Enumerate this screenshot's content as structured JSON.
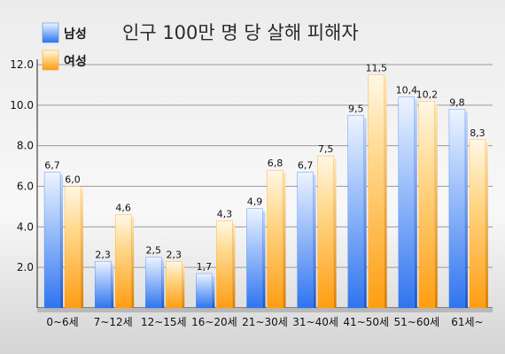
{
  "chart_data": {
    "type": "bar",
    "title": "인구 100만 명 당 살해 피해자",
    "categories": [
      "0~6세",
      "7~12세",
      "12~15세",
      "16~20세",
      "21~30세",
      "31~40세",
      "41~50세",
      "51~60세",
      "61세~"
    ],
    "series": [
      {
        "name": "남성",
        "values": [
          6.7,
          2.3,
          2.5,
          1.7,
          4.9,
          6.7,
          9.5,
          10.4,
          9.8
        ],
        "labels": [
          "6,7",
          "2,3",
          "2,5",
          "1,7",
          "4,9",
          "6,7",
          "9,5",
          "10,4",
          "9,8"
        ]
      },
      {
        "name": "여성",
        "values": [
          6.0,
          4.6,
          2.3,
          4.3,
          6.8,
          7.5,
          11.5,
          10.2,
          8.3
        ],
        "labels": [
          "6,0",
          "4,6",
          "2,3",
          "4,3",
          "6,8",
          "7,5",
          "11,5",
          "10,2",
          "8,3"
        ]
      }
    ],
    "yticks": [
      "2.0",
      "4.0",
      "6.0",
      "8.0",
      "10.0",
      "12.0"
    ],
    "ylim": [
      0,
      12
    ],
    "grid": true,
    "legend": "top-left",
    "colors": {
      "male": "#3d7ff2",
      "female": "#ffa31a"
    }
  }
}
